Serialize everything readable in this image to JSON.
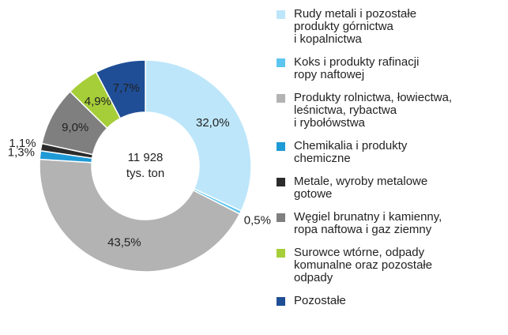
{
  "chart_data": {
    "type": "donut",
    "center_text": [
      "11 928",
      "tys. ton"
    ],
    "series": [
      {
        "name": "Rudy metali i pozostałe\nprodukty górnictwa\ni kopalnictwa",
        "color": "#bde6fa",
        "values": [
          32.0
        ],
        "value_labels": [
          "32,0%"
        ]
      },
      {
        "name": "Koks i produkty rafinacji\nropy naftowej",
        "color": "#5bc5ef",
        "values": [
          0.5
        ],
        "value_labels": [
          "0,5%"
        ]
      },
      {
        "name": "Produkty rolnictwa, łowiectwa,\nleśnictwa, rybactwa\ni rybołówstwa",
        "color": "#b3b3b3",
        "values": [
          43.5
        ],
        "value_labels": [
          "43,5%"
        ]
      },
      {
        "name": "Chemikalia i produkty\nchemiczne",
        "color": "#1e9ad6",
        "values": [
          1.3
        ],
        "value_labels": [
          "1,3%"
        ]
      },
      {
        "name": "Metale, wyroby metalowe\ngotowe",
        "color": "#2b2b2b",
        "values": [
          1.1
        ],
        "value_labels": [
          "1,1%"
        ]
      },
      {
        "name": "Węgiel brunatny i kamienny,\nropa naftowa i gaz ziemny",
        "color": "#7f7f7f",
        "values": [
          9.0
        ],
        "value_labels": [
          "9,0%"
        ]
      },
      {
        "name": "Surowce wtórne, odpady\nkomunalne oraz pozostałe\nodpady",
        "color": "#a6ce39",
        "values": [
          4.9
        ],
        "value_labels": [
          "4,9%"
        ]
      },
      {
        "name": "Pozostałe",
        "color": "#1f4e96",
        "values": [
          7.7
        ],
        "value_labels": [
          "7,7%"
        ]
      }
    ]
  }
}
